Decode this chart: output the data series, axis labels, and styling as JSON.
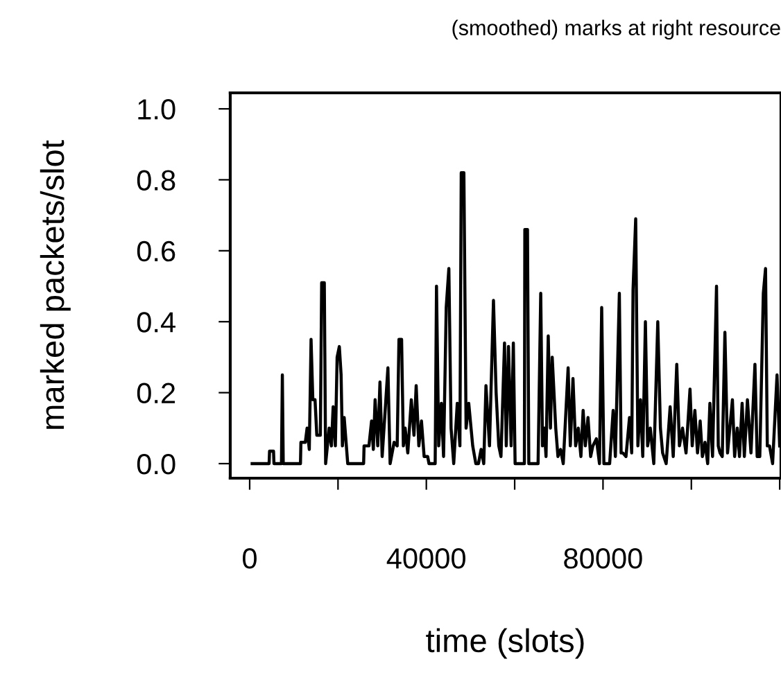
{
  "chart_data": {
    "type": "line",
    "title": "(smoothed) marks at right resource",
    "xlabel": "time (slots)",
    "ylabel": "marked packets/slot",
    "xlim": [
      -4400,
      120300
    ],
    "ylim": [
      -0.041,
      1.045
    ],
    "xticks": [
      0,
      {
        "value": 20000,
        "label": null
      },
      40000,
      {
        "value": 60000,
        "label": null
      },
      80000,
      {
        "value": 100000,
        "label": null
      },
      {
        "value": 120000,
        "label": null
      }
    ],
    "yticks": [
      {
        "value": 0,
        "label": "0.0"
      },
      0.2,
      0.4,
      0.6,
      0.8,
      {
        "value": 1,
        "label": "1.0"
      }
    ],
    "marker": "none",
    "line_style": "solid",
    "series": [
      {
        "color": "#000000",
        "x": [
          560,
          4400,
          4500,
          5400,
          5500,
          7200,
          7400,
          7600,
          11500,
          11600,
          12600,
          13000,
          13500,
          13900,
          14300,
          14800,
          15200,
          16000,
          16300,
          16900,
          17200,
          18000,
          18500,
          18900,
          19400,
          19800,
          20300,
          20700,
          21000,
          21400,
          22200,
          25800,
          25900,
          27000,
          27600,
          28000,
          28400,
          29000,
          29500,
          30000,
          31300,
          31800,
          32700,
          33400,
          33800,
          34400,
          34800,
          35200,
          35800,
          36600,
          37200,
          37700,
          38300,
          38900,
          39500,
          40300,
          40600,
          42000,
          42300,
          42800,
          43400,
          43900,
          44500,
          45100,
          45600,
          46200,
          47000,
          47600,
          47900,
          48500,
          49000,
          49600,
          50500,
          51200,
          51800,
          52400,
          53000,
          53500,
          54300,
          55200,
          55800,
          56400,
          56900,
          57700,
          58100,
          58600,
          59200,
          59700,
          60100,
          62200,
          62300,
          62900,
          63200,
          65300,
          65900,
          66300,
          66700,
          67100,
          67600,
          68100,
          68500,
          69300,
          69800,
          70400,
          71000,
          72100,
          72600,
          73200,
          73800,
          74400,
          75000,
          75500,
          76000,
          76600,
          77200,
          77700,
          78500,
          79200,
          79700,
          80200,
          81500,
          82300,
          82800,
          83700,
          84100,
          84500,
          85200,
          86000,
          86500,
          86800,
          87400,
          87900,
          88500,
          89000,
          89600,
          90100,
          90700,
          91500,
          92400,
          93000,
          93500,
          94300,
          95200,
          95900,
          96700,
          97300,
          98000,
          98800,
          99700,
          100200,
          100800,
          101400,
          102000,
          102500,
          103100,
          103700,
          104200,
          104800,
          105700,
          106100,
          106500,
          107000,
          107600,
          108200,
          109300,
          109800,
          110400,
          110900,
          111500,
          112000,
          112700,
          113500,
          114400,
          114900,
          115500,
          116300,
          116800,
          117200,
          117700,
          118400,
          119400,
          120000
        ],
        "values": [
          0,
          0,
          0.035,
          0.035,
          0,
          0,
          0.25,
          0,
          0,
          0.06,
          0.06,
          0.1,
          0.04,
          0.35,
          0.18,
          0.18,
          0.08,
          0.08,
          0.51,
          0.51,
          0,
          0.1,
          0.05,
          0.16,
          0.05,
          0.3,
          0.33,
          0.25,
          0.05,
          0.13,
          0,
          0,
          0.05,
          0.05,
          0.12,
          0.04,
          0.18,
          0.05,
          0.23,
          0.02,
          0.27,
          0,
          0.06,
          0.05,
          0.35,
          0.35,
          0.05,
          0.1,
          0.03,
          0.18,
          0.08,
          0.22,
          0.05,
          0.12,
          0.02,
          0.02,
          0,
          0,
          0.5,
          0.05,
          0.17,
          0.02,
          0.44,
          0.55,
          0.1,
          0,
          0.17,
          0.05,
          0.82,
          0.82,
          0.1,
          0.17,
          0.05,
          0,
          0,
          0.04,
          0,
          0.22,
          0.05,
          0.46,
          0.2,
          0.05,
          0.02,
          0.34,
          0.05,
          0.33,
          0.05,
          0.34,
          0,
          0,
          0.66,
          0.66,
          0,
          0,
          0.48,
          0.05,
          0.1,
          0.02,
          0.36,
          0.1,
          0.3,
          0.1,
          0.02,
          0.04,
          0,
          0.27,
          0.05,
          0.24,
          0.05,
          0.1,
          0.02,
          0.15,
          0.05,
          0.13,
          0.02,
          0.05,
          0.07,
          0,
          0.44,
          0,
          0,
          0.15,
          0.02,
          0.48,
          0.03,
          0.03,
          0.02,
          0.13,
          0.03,
          0.49,
          0.69,
          0.05,
          0.18,
          0.02,
          0.4,
          0.05,
          0.1,
          0,
          0.4,
          0.1,
          0.03,
          0,
          0.16,
          0.02,
          0.28,
          0.05,
          0.1,
          0.03,
          0.21,
          0.05,
          0.15,
          0.03,
          0.12,
          0.02,
          0.06,
          0,
          0.17,
          0.02,
          0.5,
          0.05,
          0.03,
          0.02,
          0.37,
          0.03,
          0.18,
          0.02,
          0.1,
          0.02,
          0.17,
          0.02,
          0.18,
          0.03,
          0.28,
          0.02,
          0.02,
          0.48,
          0.55,
          0.05,
          0.05,
          0,
          0.25,
          0.05
        ]
      }
    ]
  }
}
